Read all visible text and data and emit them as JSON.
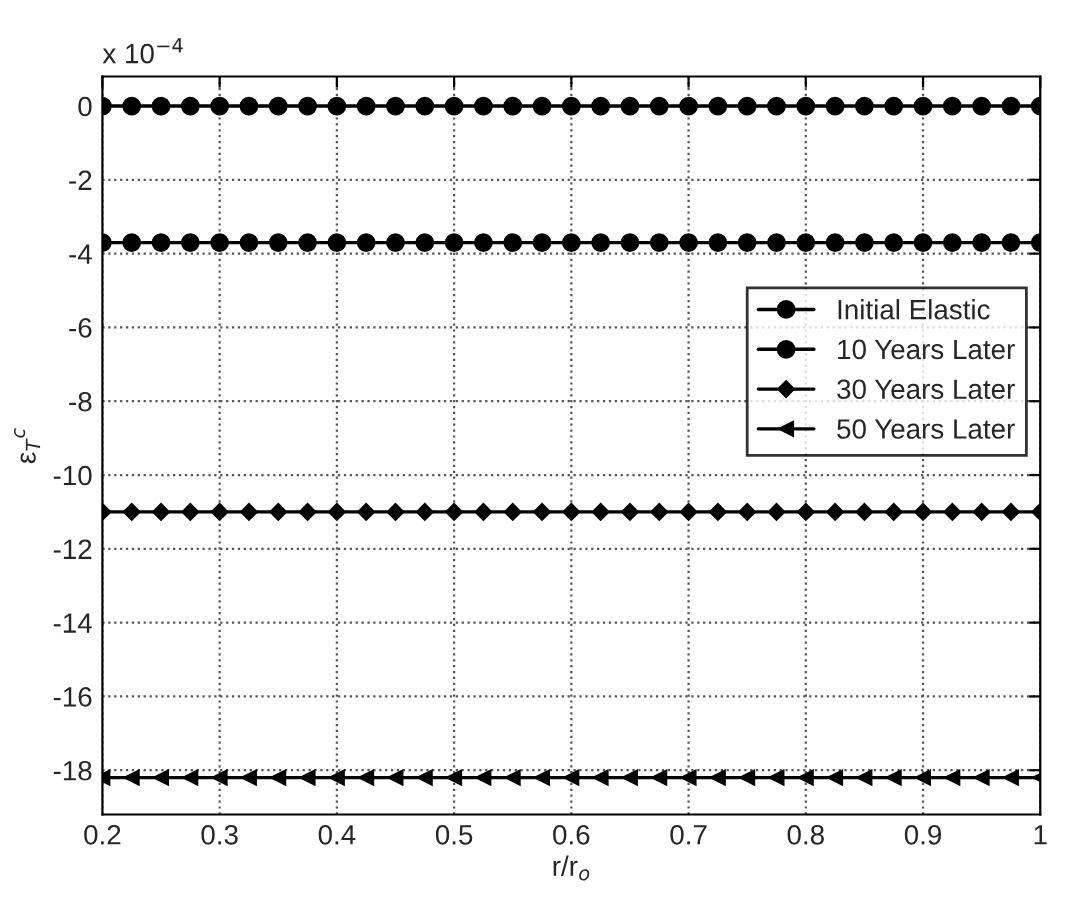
{
  "chart_data": {
    "type": "line",
    "xlabel": "r/r$_{o}$",
    "ylabel": "ε$_{T}$$^{c}$",
    "annotations": [
      "x 10$^{−4}$"
    ],
    "x": [
      0.2,
      0.225,
      0.25,
      0.275,
      0.3,
      0.325,
      0.35,
      0.375,
      0.4,
      0.425,
      0.45,
      0.475,
      0.5,
      0.525,
      0.55,
      0.575,
      0.6,
      0.625,
      0.65,
      0.675,
      0.7,
      0.725,
      0.75,
      0.775,
      0.8,
      0.825,
      0.85,
      0.875,
      0.9,
      0.925,
      0.95,
      0.975,
      1.0
    ],
    "series": [
      {
        "name": "Initial Elastic",
        "color": "#000000",
        "marker": "circle",
        "values": [
          0,
          0,
          0,
          0,
          0,
          0,
          0,
          0,
          0,
          0,
          0,
          0,
          0,
          0,
          0,
          0,
          0,
          0,
          0,
          0,
          0,
          0,
          0,
          0,
          0,
          0,
          0,
          0,
          0,
          0,
          0,
          0,
          0
        ]
      },
      {
        "name": "10 Years Later",
        "color": "#000000",
        "marker": "circle",
        "values": [
          -3.7,
          -3.7,
          -3.7,
          -3.7,
          -3.7,
          -3.7,
          -3.7,
          -3.7,
          -3.7,
          -3.7,
          -3.7,
          -3.7,
          -3.7,
          -3.7,
          -3.7,
          -3.7,
          -3.7,
          -3.7,
          -3.7,
          -3.7,
          -3.7,
          -3.7,
          -3.7,
          -3.7,
          -3.7,
          -3.7,
          -3.7,
          -3.7,
          -3.7,
          -3.7,
          -3.7,
          -3.7,
          -3.7
        ]
      },
      {
        "name": "30 Years Later",
        "color": "#000000",
        "marker": "diamond",
        "values": [
          -11,
          -11,
          -11,
          -11,
          -11,
          -11,
          -11,
          -11,
          -11,
          -11,
          -11,
          -11,
          -11,
          -11,
          -11,
          -11,
          -11,
          -11,
          -11,
          -11,
          -11,
          -11,
          -11,
          -11,
          -11,
          -11,
          -11,
          -11,
          -11,
          -11,
          -11,
          -11,
          -11
        ]
      },
      {
        "name": "50 Years Later",
        "color": "#000000",
        "marker": "triangle",
        "values": [
          -18.2,
          -18.2,
          -18.2,
          -18.2,
          -18.2,
          -18.2,
          -18.2,
          -18.2,
          -18.2,
          -18.2,
          -18.2,
          -18.2,
          -18.2,
          -18.2,
          -18.2,
          -18.2,
          -18.2,
          -18.2,
          -18.2,
          -18.2,
          -18.2,
          -18.2,
          -18.2,
          -18.2,
          -18.2,
          -18.2,
          -18.2,
          -18.2,
          -18.2,
          -18.2,
          -18.2,
          -18.2,
          -18.2
        ]
      }
    ],
    "xlim": [
      0.2,
      1.0
    ],
    "xticks": [
      0.2,
      0.3,
      0.4,
      0.5,
      0.6,
      0.7,
      0.8,
      0.9,
      {
        "value": 1.0,
        "label": "1"
      }
    ],
    "ylim": [
      -19.2,
      0.8
    ],
    "yticks": [
      -18,
      -16,
      -14,
      -12,
      -10,
      -8,
      -6,
      -4,
      -2,
      0
    ],
    "grid": true,
    "legend": "right",
    "line_style": "solid"
  }
}
